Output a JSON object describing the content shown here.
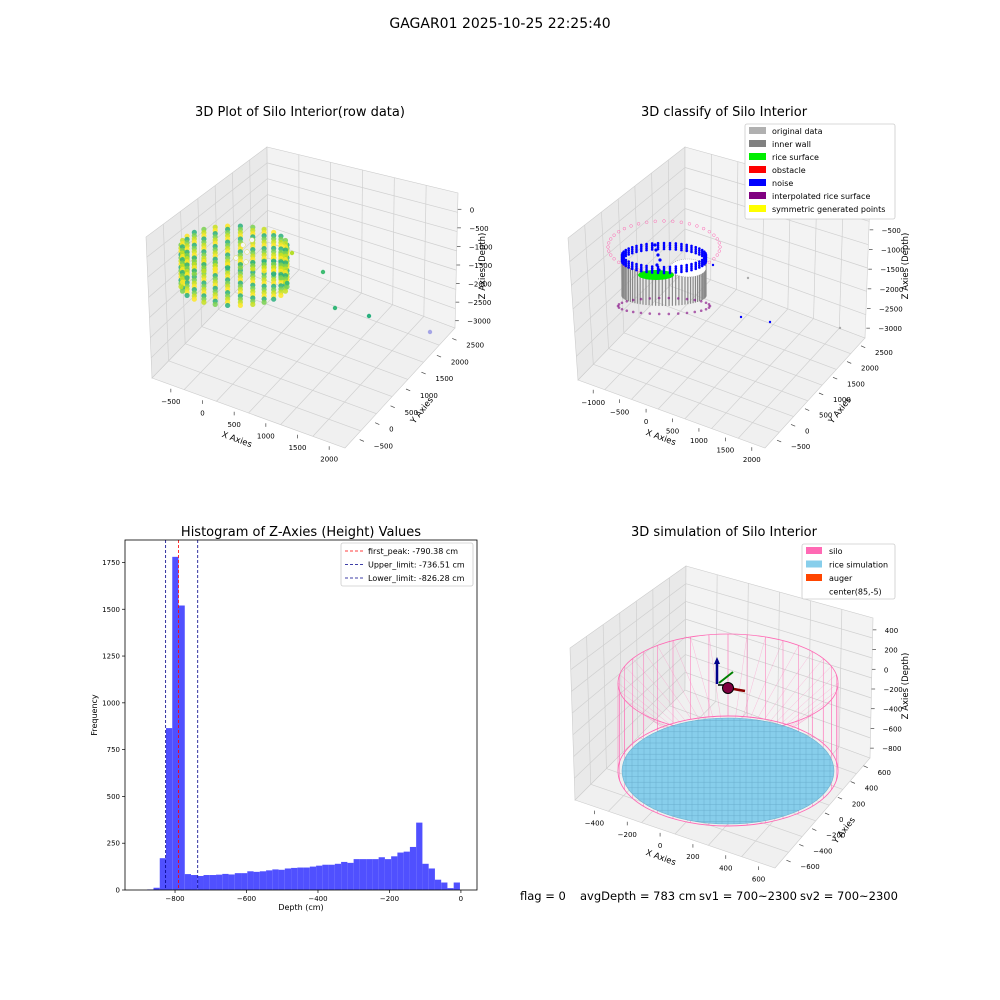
{
  "figure_title": "GAGAR01 2025-10-25 22:25:40",
  "footer": {
    "flag": "flag = 0",
    "avg_depth": "avgDepth = 783 cm",
    "sv1": "sv1 = 700~2300",
    "sv2": "sv2 = 700~2300"
  },
  "chart_data": [
    {
      "type": "scatter3d",
      "title": "3D Plot of Silo Interior(row data)",
      "xlabel": "X Axies",
      "ylabel": "Y Axies",
      "zlabel": "Z Axies (Depth)",
      "xticks": [
        "−500",
        "0",
        "500",
        "1000",
        "1500",
        "2000"
      ],
      "yticks": [
        "−500",
        "0",
        "500",
        "1000",
        "1500",
        "2000",
        "2500"
      ],
      "zticks": [
        "0",
        "−500",
        "−1000",
        "−1500",
        "−2000",
        "−2500",
        "−3000"
      ],
      "colormap": [
        "#2ab07f",
        "#7ad151",
        "#c7e020",
        "#fde725"
      ],
      "outlier_colors": [
        "#b5de2b",
        "#3fbc73",
        "#3fbc73",
        "#35b779",
        "#2ab07f",
        "#a5a5e6"
      ]
    },
    {
      "type": "scatter3d",
      "title": "3D classify of Silo Interior",
      "xlabel": "X Axies",
      "ylabel": "Y Axies",
      "zlabel": "Z Axies (Depth)",
      "xticks": [
        "−1000",
        "−500",
        "0",
        "500",
        "1000",
        "1500",
        "2000"
      ],
      "yticks": [
        "−500",
        "0",
        "500",
        "1000",
        "1500",
        "2000",
        "2500"
      ],
      "zticks": [
        "−500",
        "−1000",
        "−1500",
        "−2000",
        "−2500",
        "−3000"
      ],
      "legend": [
        {
          "label": "original data",
          "color": "#b0b0b0"
        },
        {
          "label": "inner wall",
          "color": "#808080"
        },
        {
          "label": "rice surface",
          "color": "#00ee00"
        },
        {
          "label": "obstacle",
          "color": "#ff0000"
        },
        {
          "label": "noise",
          "color": "#0000ff"
        },
        {
          "label": "interpolated rice surface",
          "color": "#800080"
        },
        {
          "label": "symmetric generated points",
          "color": "#ffff00"
        }
      ]
    },
    {
      "type": "bar",
      "title": "Histogram of Z-Axies (Height) Values",
      "xlabel": "Depth (cm)",
      "ylabel": "Frequency",
      "xlim": [
        -940,
        45
      ],
      "ylim": [
        0,
        1870
      ],
      "xticks": [
        -800,
        -600,
        -400,
        -200,
        0
      ],
      "yticks": [
        0,
        250,
        500,
        750,
        1000,
        1250,
        1500,
        1750
      ],
      "bar_color": "#5050ff",
      "bin_width": 17.5,
      "bins": [
        {
          "x": -869,
          "v": 3
        },
        {
          "x": -851.5,
          "v": 12
        },
        {
          "x": -834,
          "v": 170
        },
        {
          "x": -816.5,
          "v": 865
        },
        {
          "x": -799,
          "v": 1780
        },
        {
          "x": -781.5,
          "v": 1520
        },
        {
          "x": -764,
          "v": 85
        },
        {
          "x": -746.5,
          "v": 80
        },
        {
          "x": -729,
          "v": 75
        },
        {
          "x": -711.5,
          "v": 80
        },
        {
          "x": -694,
          "v": 80
        },
        {
          "x": -676.5,
          "v": 82
        },
        {
          "x": -659,
          "v": 86
        },
        {
          "x": -641.5,
          "v": 83
        },
        {
          "x": -624,
          "v": 90
        },
        {
          "x": -606.5,
          "v": 90
        },
        {
          "x": -589,
          "v": 100
        },
        {
          "x": -571.5,
          "v": 97
        },
        {
          "x": -554,
          "v": 100
        },
        {
          "x": -536.5,
          "v": 105
        },
        {
          "x": -519,
          "v": 110
        },
        {
          "x": -501.5,
          "v": 108
        },
        {
          "x": -484,
          "v": 115
        },
        {
          "x": -466.5,
          "v": 118
        },
        {
          "x": -449,
          "v": 120
        },
        {
          "x": -431.5,
          "v": 120
        },
        {
          "x": -414,
          "v": 125
        },
        {
          "x": -396.5,
          "v": 130
        },
        {
          "x": -379,
          "v": 135
        },
        {
          "x": -361.5,
          "v": 135
        },
        {
          "x": -344,
          "v": 140
        },
        {
          "x": -326.5,
          "v": 150
        },
        {
          "x": -309,
          "v": 145
        },
        {
          "x": -291.5,
          "v": 165
        },
        {
          "x": -274,
          "v": 165
        },
        {
          "x": -256.5,
          "v": 165
        },
        {
          "x": -239,
          "v": 165
        },
        {
          "x": -221.5,
          "v": 175
        },
        {
          "x": -204,
          "v": 165
        },
        {
          "x": -186.5,
          "v": 180
        },
        {
          "x": -169,
          "v": 200
        },
        {
          "x": -151.5,
          "v": 205
        },
        {
          "x": -134,
          "v": 230
        },
        {
          "x": -116.5,
          "v": 360
        },
        {
          "x": -99,
          "v": 140
        },
        {
          "x": -81.5,
          "v": 115
        },
        {
          "x": -64,
          "v": 55
        },
        {
          "x": -46.5,
          "v": 40
        },
        {
          "x": -29,
          "v": 10
        },
        {
          "x": -11.5,
          "v": 40
        }
      ],
      "vlines": [
        {
          "label": "first_peak: -790.38 cm",
          "x": -790.38,
          "color": "#ff0000"
        },
        {
          "label": "Upper_limit: -736.51 cm",
          "x": -736.51,
          "color": "#00008b"
        },
        {
          "label": "Lower_limit: -826.28 cm",
          "x": -826.28,
          "color": "#00008b"
        }
      ]
    },
    {
      "type": "surface3d",
      "title": "3D simulation of Silo Interior",
      "xlabel": "X Axies",
      "ylabel": "Y Axies",
      "zlabel": "Z Axies (Depth)",
      "xticks": [
        "−400",
        "−200",
        "0",
        "200",
        "400",
        "600"
      ],
      "yticks": [
        "−600",
        "−400",
        "−200",
        "0",
        "200",
        "400",
        "600"
      ],
      "zticks": [
        "400",
        "200",
        "0",
        "−200",
        "−400",
        "−600",
        "−800"
      ],
      "legend": [
        {
          "label": "silo",
          "color": "#ff69b4"
        },
        {
          "label": "rice simulation",
          "color": "#87ceeb"
        },
        {
          "label": "auger",
          "color": "#ff4500"
        },
        {
          "label": "center(85,-5)",
          "color": "none"
        }
      ]
    }
  ]
}
